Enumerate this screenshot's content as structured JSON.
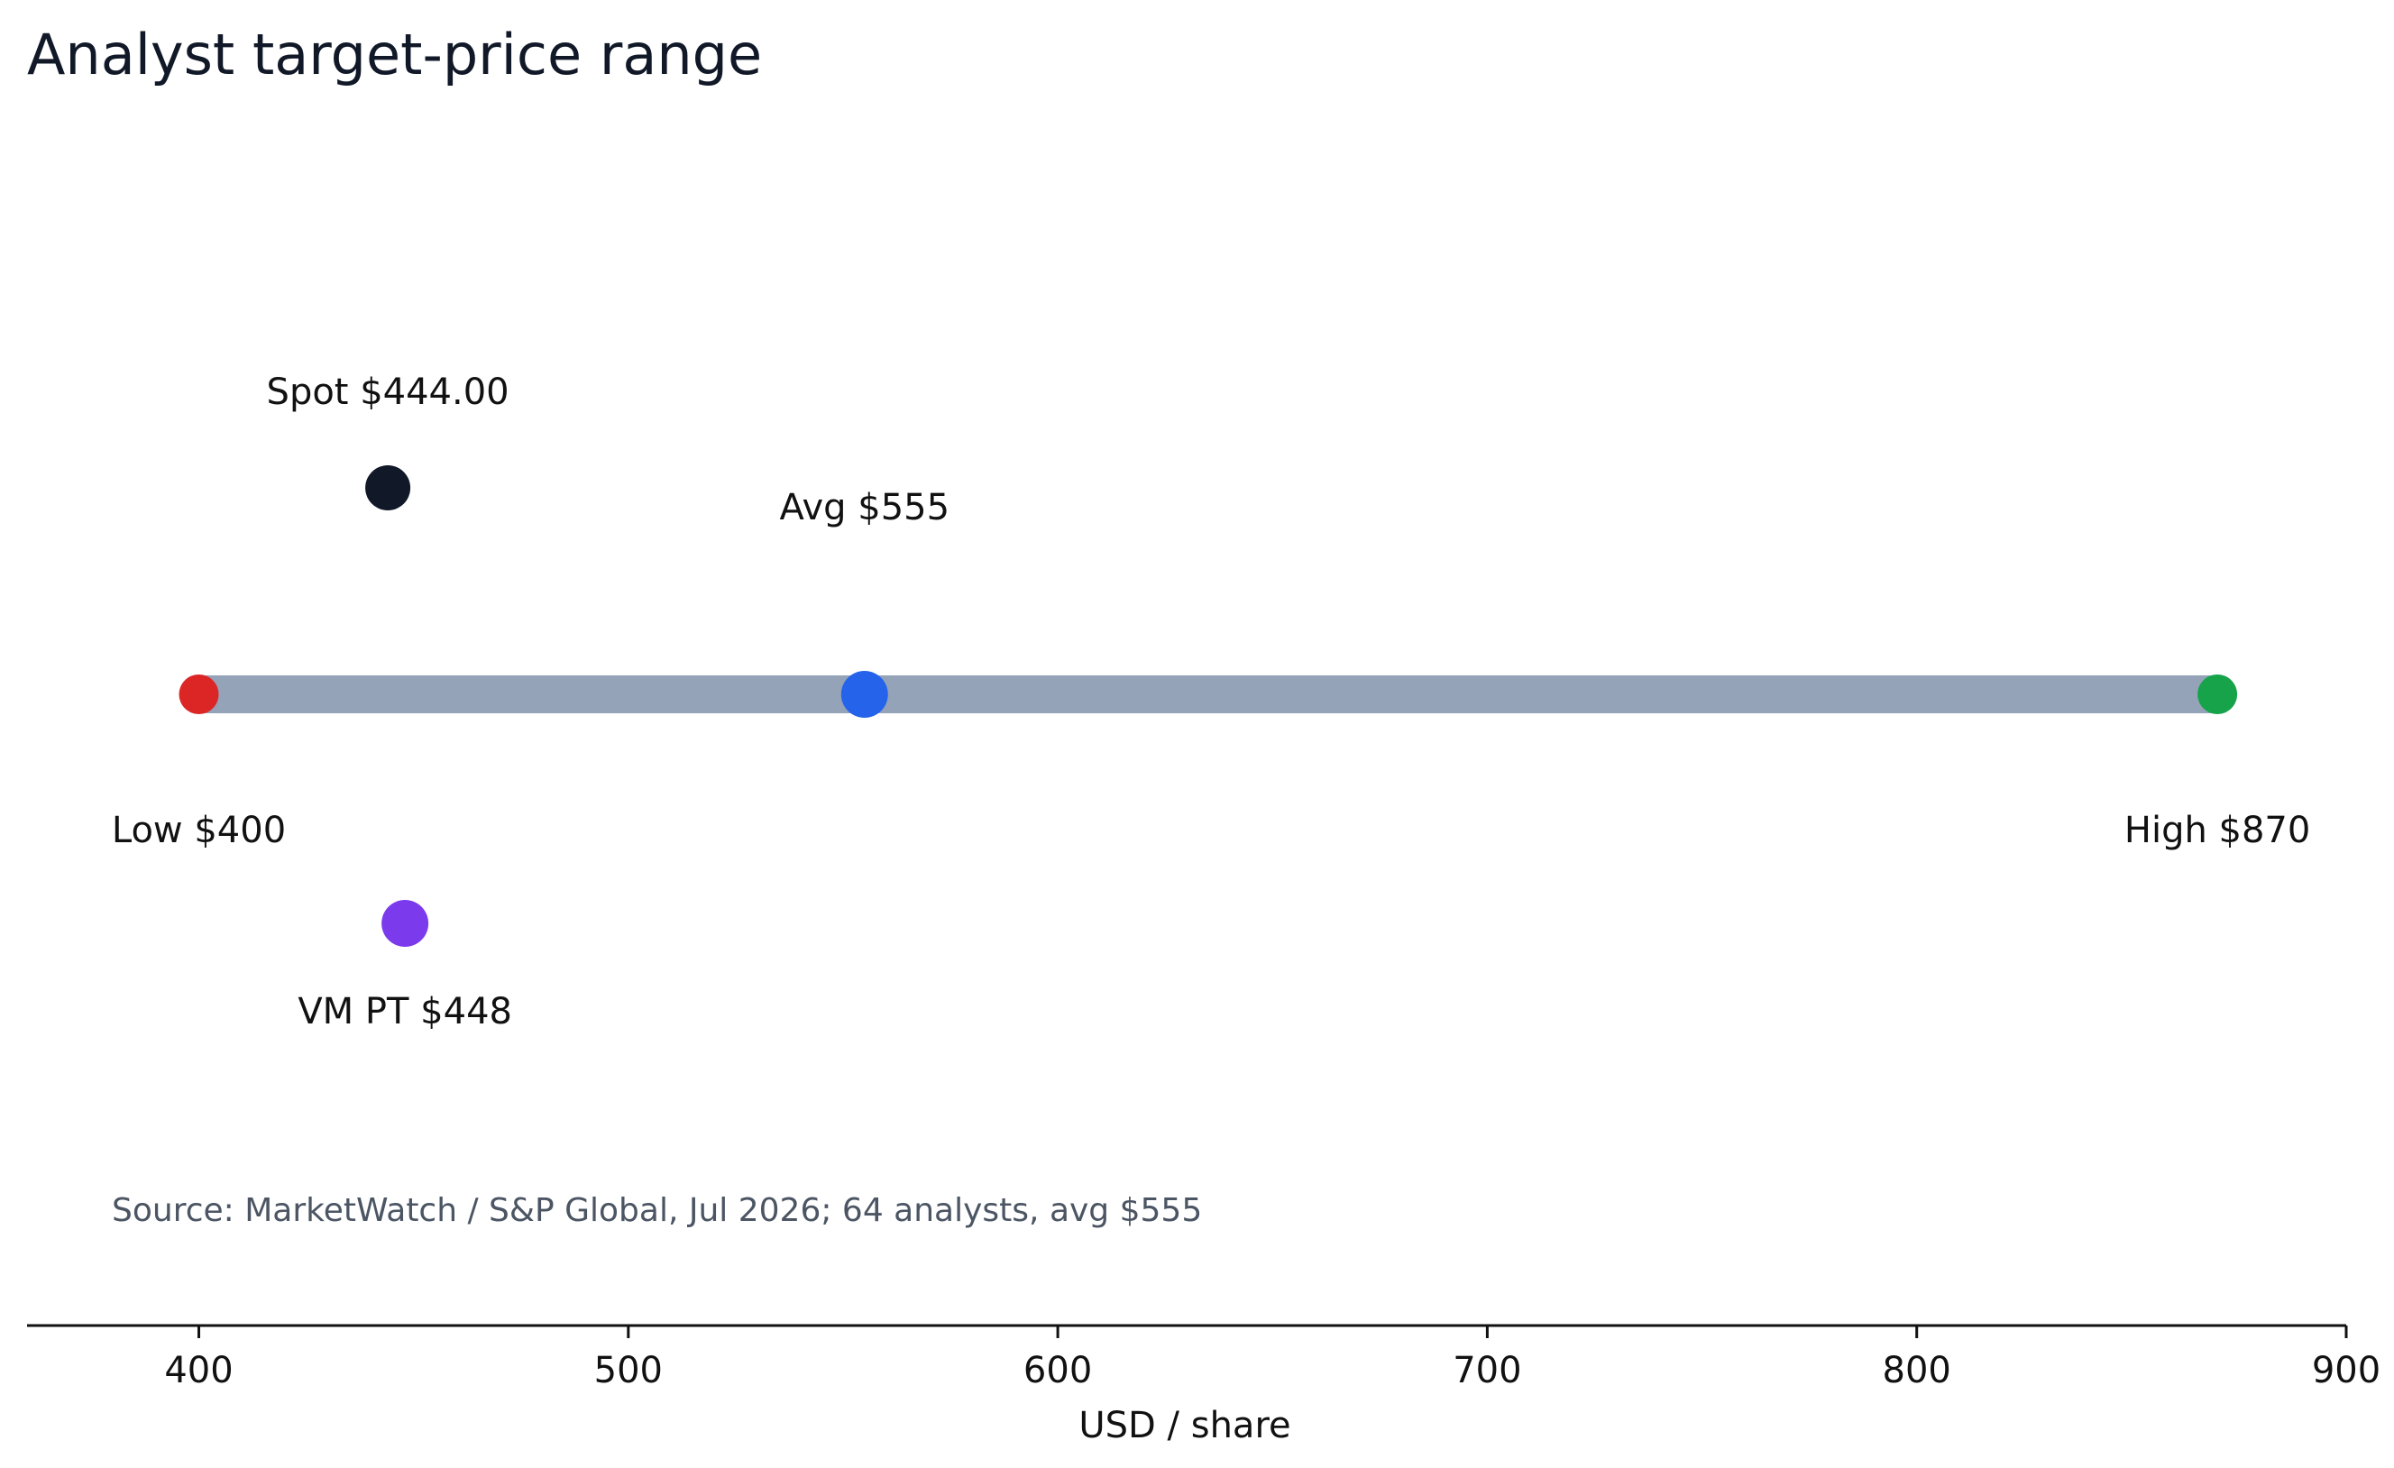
{
  "chart_data": {
    "type": "range-dot",
    "title": "Analyst target-price range",
    "xlabel": "USD / share",
    "xlim": [
      360,
      900
    ],
    "xticks": [
      400,
      500,
      600,
      700,
      800,
      900
    ],
    "xtick_labels": [
      "400",
      "500",
      "600",
      "700",
      "800",
      "900"
    ],
    "grid": false,
    "range": {
      "low": 400,
      "high": 870,
      "color": "#94a3b8"
    },
    "points": [
      {
        "key": "low",
        "label": "Low $400",
        "value": 400,
        "color": "#dc2626",
        "row": "range",
        "label_position": "below"
      },
      {
        "key": "avg",
        "label": "Avg $555",
        "value": 555,
        "color": "#2563eb",
        "row": "range",
        "label_position": "above"
      },
      {
        "key": "high",
        "label": "High $870",
        "value": 870,
        "color": "#16a34a",
        "row": "range",
        "label_position": "below"
      },
      {
        "key": "spot",
        "label": "Spot $444.00",
        "value": 444,
        "color": "#111827",
        "row": "upper",
        "label_position": "above"
      },
      {
        "key": "vm",
        "label": "VM PT $448",
        "value": 448,
        "color": "#7c3aed",
        "row": "lower",
        "label_position": "below"
      }
    ],
    "annotations": [
      {
        "text": "Source: MarketWatch / S&P Global, Jul 2026; 64 analysts, avg $555"
      }
    ]
  }
}
